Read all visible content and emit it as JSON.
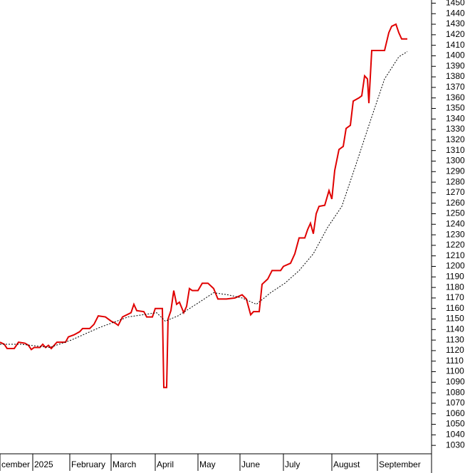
{
  "chart_data": {
    "type": "line",
    "xlim": [
      0,
      303
    ],
    "ylim": [
      1022,
      1453
    ],
    "xticks": [
      {
        "value": 0,
        "label": "cember"
      },
      {
        "value": 23,
        "label": "2025"
      },
      {
        "value": 49,
        "label": "February"
      },
      {
        "value": 78,
        "label": "March"
      },
      {
        "value": 109,
        "label": "April"
      },
      {
        "value": 139,
        "label": "May"
      },
      {
        "value": 168.5,
        "label": "June"
      },
      {
        "value": 199,
        "label": "July"
      },
      {
        "value": 233,
        "label": "August"
      },
      {
        "value": 265,
        "label": "September"
      }
    ],
    "yticks": [
      1030,
      1040,
      1050,
      1060,
      1070,
      1080,
      1090,
      1100,
      1110,
      1120,
      1130,
      1140,
      1150,
      1160,
      1170,
      1180,
      1190,
      1200,
      1210,
      1220,
      1230,
      1240,
      1250,
      1260,
      1270,
      1280,
      1290,
      1300,
      1310,
      1320,
      1330,
      1340,
      1350,
      1360,
      1370,
      1380,
      1390,
      1400,
      1410,
      1420,
      1430,
      1440,
      1450
    ],
    "series": [
      {
        "color": "#e00000",
        "style": "solid",
        "x": [
          0,
          3,
          5,
          10,
          13,
          17.5,
          20,
          22,
          24,
          28,
          30,
          32,
          34,
          36,
          40,
          46,
          48,
          52,
          56,
          58,
          63,
          66,
          69,
          74,
          78,
          81,
          83,
          86,
          92,
          94,
          96,
          101,
          103,
          107,
          109,
          114,
          115,
          117,
          118,
          120,
          122,
          124,
          126,
          129,
          131,
          133,
          135,
          139,
          142,
          146,
          150,
          153,
          159,
          165,
          170,
          173,
          176,
          178,
          182,
          184,
          188,
          191,
          197,
          199,
          204,
          207,
          210,
          214,
          216,
          218,
          220,
          222,
          224,
          228,
          231,
          233,
          235,
          238,
          241,
          243,
          246,
          248,
          252,
          254,
          256,
          258,
          259,
          261,
          270,
          273,
          275,
          278,
          280,
          282,
          286
        ],
        "values": [
          1128,
          1126,
          1122,
          1122,
          1128,
          1127,
          1125,
          1121,
          1123,
          1123,
          1126,
          1123,
          1125,
          1122,
          1128,
          1128,
          1133,
          1135,
          1138,
          1141,
          1141,
          1145,
          1153,
          1152,
          1148,
          1146,
          1144,
          1152,
          1156,
          1164,
          1158,
          1157,
          1152,
          1152,
          1160,
          1160,
          1085,
          1085,
          1150,
          1158,
          1177,
          1164,
          1166,
          1156,
          1162,
          1179,
          1177,
          1177,
          1184,
          1184,
          1179,
          1169,
          1169,
          1170,
          1173,
          1169,
          1154,
          1157,
          1157,
          1183,
          1188,
          1196,
          1196,
          1200,
          1203,
          1212,
          1227,
          1227,
          1235,
          1241,
          1231,
          1250,
          1257,
          1258,
          1272,
          1264,
          1291,
          1311,
          1314,
          1331,
          1334,
          1357,
          1360,
          1362,
          1381,
          1378,
          1355,
          1405,
          1405,
          1422,
          1428,
          1430,
          1422,
          1416,
          1416
        ]
      },
      {
        "color": "#000000",
        "style": "dotted",
        "x": [
          0,
          15,
          35,
          50,
          70,
          90,
          110,
          116,
          125,
          140,
          150,
          160,
          170,
          180,
          190,
          200,
          210,
          220,
          230,
          240,
          250,
          260,
          270,
          280,
          286
        ],
        "values": [
          1126,
          1126,
          1123,
          1130,
          1142,
          1152,
          1156,
          1148,
          1153,
          1166,
          1175,
          1173,
          1170,
          1164,
          1175,
          1184,
          1196,
          1212,
          1237,
          1257,
          1297,
          1338,
          1378,
          1399,
          1404
        ]
      }
    ]
  }
}
